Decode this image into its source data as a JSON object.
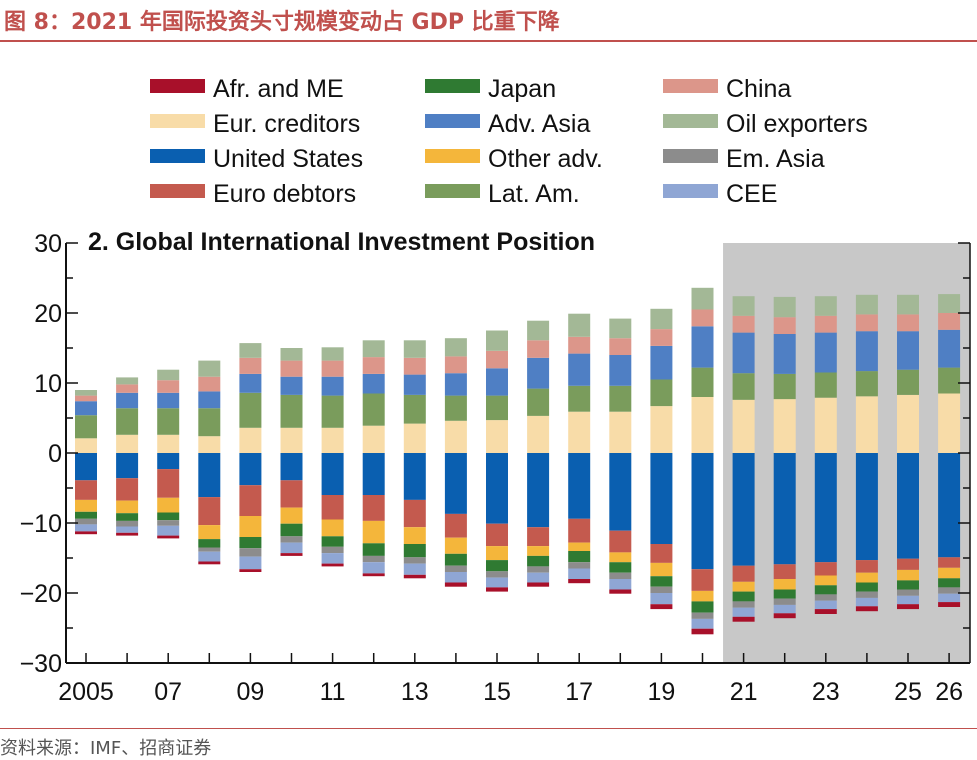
{
  "figure": {
    "title": "图 8：2021 年国际投资头寸规模变动占 GDP 比重下降",
    "source": "资料来源：IMF、招商证券"
  },
  "chart_data": {
    "type": "bar",
    "stacked": true,
    "title": "2. Global International Investment Position",
    "xlabel": "",
    "ylabel": "",
    "ylim": [
      -30,
      30
    ],
    "yticks": [
      -30,
      -20,
      -10,
      0,
      10,
      20,
      30
    ],
    "yticklabels": [
      "−30",
      "−20",
      "−10",
      "0",
      "10",
      "20",
      "30"
    ],
    "grid": false,
    "legend_position": "top",
    "projection_shading": {
      "from": "2021",
      "to": "2026",
      "color": "#c8c8c8"
    },
    "categories": [
      "2005",
      "2006",
      "2007",
      "2008",
      "2009",
      "2010",
      "2011",
      "2012",
      "2013",
      "2014",
      "2015",
      "2016",
      "2017",
      "2018",
      "2019",
      "2020",
      "2021",
      "2022",
      "2023",
      "2024",
      "2025",
      "2026"
    ],
    "xticklabels": [
      "2005",
      "",
      "07",
      "",
      "09",
      "",
      "11",
      "",
      "13",
      "",
      "15",
      "",
      "17",
      "",
      "19",
      "",
      "21",
      "",
      "23",
      "",
      "25",
      "26"
    ],
    "legend_order": [
      "Afr. and ME",
      "Japan",
      "China",
      "Eur. creditors",
      "Adv. Asia",
      "Oil exporters",
      "United States",
      "Other adv.",
      "Em. Asia",
      "Euro debtors",
      "Lat. Am.",
      "CEE"
    ],
    "positive_series": [
      {
        "name": "Eur. creditors",
        "color": "#f8dca8",
        "values": [
          2.1,
          2.6,
          2.6,
          2.4,
          3.6,
          3.6,
          3.6,
          3.9,
          4.2,
          4.6,
          4.7,
          5.3,
          5.9,
          5.9,
          6.7,
          8.0,
          7.6,
          7.7,
          7.9,
          8.1,
          8.3,
          8.5
        ]
      },
      {
        "name": "Lat. Am.",
        "color": "#7a9c5c",
        "values": [
          3.3,
          3.8,
          3.8,
          4.0,
          5.0,
          4.7,
          4.6,
          4.6,
          4.1,
          3.6,
          3.5,
          3.9,
          3.7,
          3.7,
          3.8,
          4.2,
          3.8,
          3.6,
          3.6,
          3.6,
          3.6,
          3.7
        ]
      },
      {
        "name": "Adv. Asia",
        "color": "#4f7fc4",
        "values": [
          2.0,
          2.2,
          2.2,
          2.4,
          2.7,
          2.6,
          2.7,
          2.8,
          2.9,
          3.2,
          3.9,
          4.4,
          4.6,
          4.4,
          4.8,
          5.9,
          5.8,
          5.7,
          5.7,
          5.7,
          5.5,
          5.4
        ]
      },
      {
        "name": "China",
        "color": "#dc968a",
        "values": [
          0.8,
          1.2,
          1.8,
          2.1,
          2.3,
          2.3,
          2.3,
          2.4,
          2.4,
          2.4,
          2.5,
          2.5,
          2.4,
          2.4,
          2.4,
          2.4,
          2.4,
          2.4,
          2.4,
          2.4,
          2.4,
          2.4
        ]
      },
      {
        "name": "Oil exporters",
        "color": "#a3b896",
        "values": [
          0.8,
          1.0,
          1.5,
          2.3,
          2.1,
          1.8,
          1.9,
          2.4,
          2.5,
          2.6,
          2.9,
          2.8,
          3.3,
          2.8,
          2.9,
          3.1,
          2.8,
          2.9,
          2.8,
          2.8,
          2.8,
          2.7
        ]
      }
    ],
    "negative_series": [
      {
        "name": "United States",
        "color": "#0a5fb0",
        "values": [
          -3.9,
          -3.6,
          -2.3,
          -6.3,
          -4.6,
          -3.9,
          -6.0,
          -6.0,
          -6.7,
          -8.7,
          -10.1,
          -10.6,
          -9.4,
          -11.1,
          -13.0,
          -16.6,
          -16.1,
          -15.9,
          -15.6,
          -15.3,
          -15.1,
          -14.9
        ]
      },
      {
        "name": "Euro debtors",
        "color": "#c45a4e",
        "values": [
          -2.8,
          -3.2,
          -4.1,
          -4.0,
          -4.4,
          -3.9,
          -3.5,
          -3.7,
          -3.9,
          -3.4,
          -3.2,
          -2.7,
          -3.4,
          -3.1,
          -2.7,
          -3.1,
          -2.3,
          -2.1,
          -1.9,
          -1.8,
          -1.6,
          -1.5
        ]
      },
      {
        "name": "Other adv.",
        "color": "#f4b63b",
        "values": [
          -1.7,
          -1.8,
          -2.1,
          -2.0,
          -3.0,
          -2.3,
          -2.4,
          -3.2,
          -2.4,
          -2.3,
          -2.0,
          -1.4,
          -1.2,
          -1.4,
          -1.9,
          -1.5,
          -1.4,
          -1.5,
          -1.4,
          -1.4,
          -1.5,
          -1.5
        ]
      },
      {
        "name": "Japan",
        "color": "#2f7a32",
        "values": [
          -1.0,
          -1.1,
          -1.1,
          -1.2,
          -1.6,
          -1.8,
          -1.5,
          -1.8,
          -1.9,
          -1.7,
          -1.6,
          -1.5,
          -1.6,
          -1.5,
          -1.5,
          -1.6,
          -1.4,
          -1.3,
          -1.3,
          -1.3,
          -1.3,
          -1.3
        ]
      },
      {
        "name": "Em. Asia",
        "color": "#8c8c8c",
        "values": [
          -0.8,
          -0.8,
          -0.8,
          -0.6,
          -1.2,
          -0.9,
          -0.9,
          -0.9,
          -0.9,
          -0.9,
          -0.9,
          -0.9,
          -0.9,
          -0.9,
          -0.9,
          -0.9,
          -0.9,
          -0.9,
          -0.9,
          -0.9,
          -0.9,
          -0.9
        ]
      },
      {
        "name": "CEE",
        "color": "#8fa6d4",
        "values": [
          -1.0,
          -0.9,
          -1.4,
          -1.4,
          -1.8,
          -1.5,
          -1.5,
          -1.6,
          -1.6,
          -1.5,
          -1.4,
          -1.4,
          -1.5,
          -1.5,
          -1.6,
          -1.4,
          -1.3,
          -1.2,
          -1.2,
          -1.2,
          -1.2,
          -1.2
        ]
      },
      {
        "name": "Afr. and ME",
        "color": "#a8102a",
        "values": [
          -0.4,
          -0.4,
          -0.4,
          -0.4,
          -0.4,
          -0.4,
          -0.4,
          -0.4,
          -0.5,
          -0.6,
          -0.6,
          -0.6,
          -0.6,
          -0.6,
          -0.7,
          -0.8,
          -0.7,
          -0.7,
          -0.7,
          -0.7,
          -0.7,
          -0.7
        ]
      }
    ]
  }
}
